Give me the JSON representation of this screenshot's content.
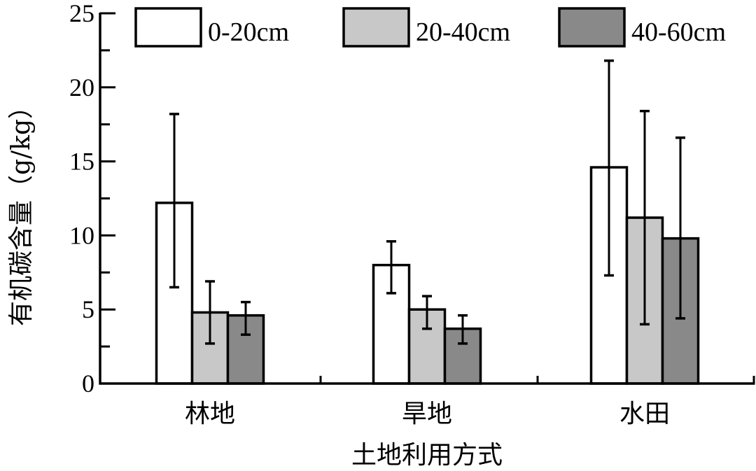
{
  "chart_data": {
    "type": "bar",
    "title": "",
    "xlabel": "土地利用方式",
    "ylabel": "有机碳含量（g/kg）",
    "ylim": [
      0,
      25
    ],
    "yticks": [
      0,
      5,
      10,
      15,
      20,
      25
    ],
    "yminor_step": 2.5,
    "grid": false,
    "legend_position": "top",
    "categories": [
      "林地",
      "旱地",
      "水田"
    ],
    "series": [
      {
        "name": "0-20cm",
        "color": "#ffffff",
        "values": [
          12.2,
          8.0,
          14.6
        ],
        "error_upper": [
          18.2,
          9.6,
          21.8
        ],
        "error_lower": [
          6.5,
          6.1,
          7.3
        ]
      },
      {
        "name": "20-40cm",
        "color": "#c8c8c8",
        "values": [
          4.8,
          5.0,
          11.2
        ],
        "error_upper": [
          6.9,
          5.9,
          18.4
        ],
        "error_lower": [
          2.7,
          3.7,
          4.0
        ]
      },
      {
        "name": "40-60cm",
        "color": "#898989",
        "values": [
          4.6,
          3.7,
          9.8
        ],
        "error_upper": [
          5.5,
          4.6,
          16.6
        ],
        "error_lower": [
          3.3,
          2.7,
          4.4
        ]
      }
    ]
  }
}
